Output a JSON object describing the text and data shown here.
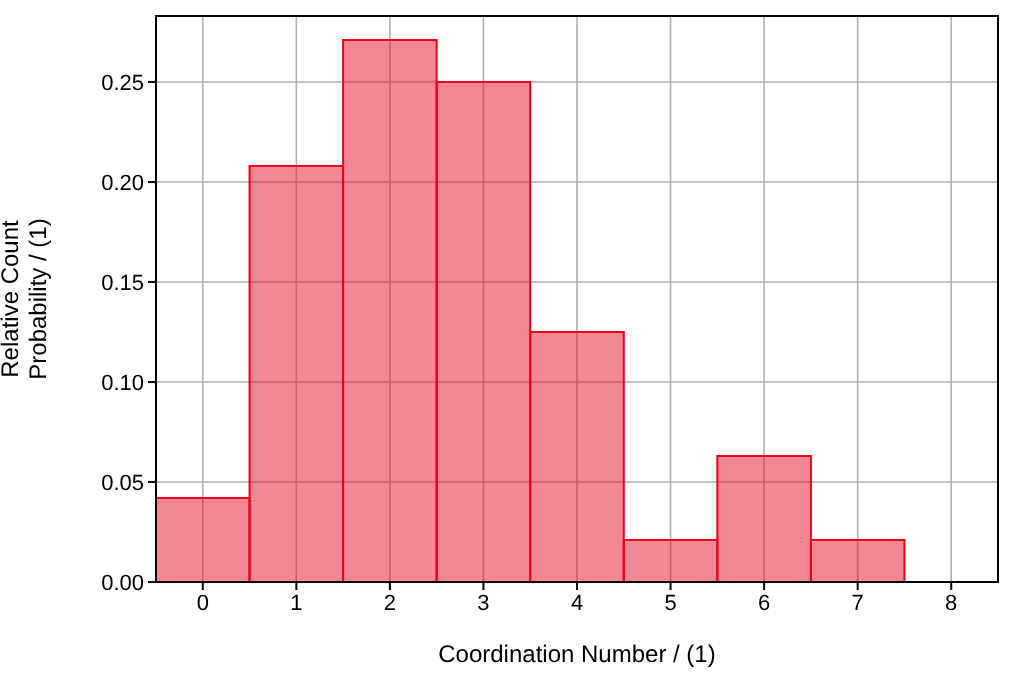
{
  "chart_data": {
    "type": "histogram",
    "xlabel": "Coordination Number / (1)",
    "ylabel": "Relative Count\nProbability / (1)",
    "bins": [
      -0.5,
      0.5,
      1.5,
      2.5,
      3.5,
      4.5,
      5.5,
      6.5,
      7.5,
      8.5
    ],
    "values": [
      0.042,
      0.208,
      0.271,
      0.25,
      0.125,
      0.021,
      0.063,
      0.021,
      0
    ],
    "color": "#e8001c",
    "xlim": [
      -0.5,
      8.5
    ],
    "xticks": [
      0,
      1,
      2,
      3,
      4,
      5,
      6,
      7,
      8
    ],
    "ylim": [
      0,
      0.283
    ],
    "yticks": [
      {
        "value": 0,
        "label": "0.00"
      },
      {
        "value": 0.05,
        "label": "0.05"
      },
      {
        "value": 0.1,
        "label": "0.10"
      },
      {
        "value": 0.15,
        "label": "0.15"
      },
      {
        "value": 0.2,
        "label": "0.20"
      },
      {
        "value": 0.25,
        "label": "0.25"
      }
    ],
    "grid": true
  }
}
